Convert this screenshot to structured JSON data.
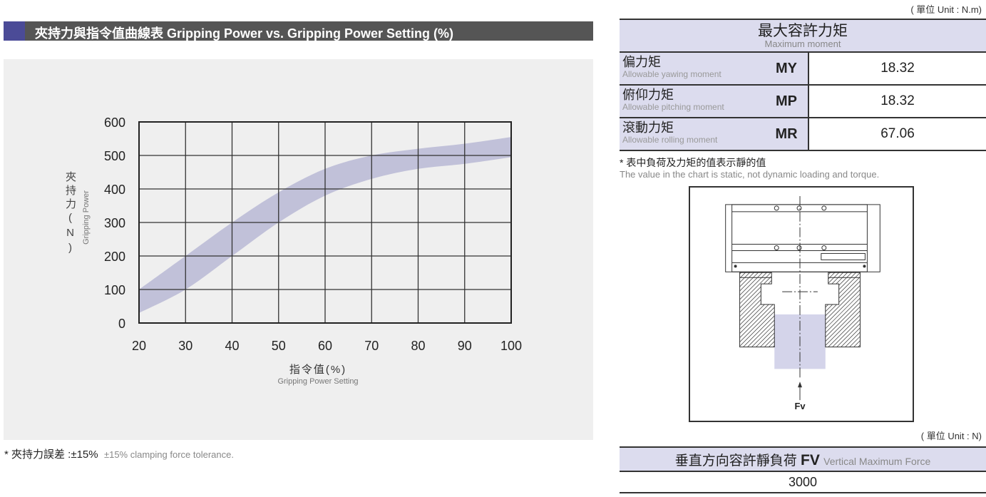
{
  "left": {
    "section_title": "夾持力與指令值曲線表 Gripping Power vs. Gripping Power Setting (%)",
    "tolerance_zh": "* 夾持力誤差 :±15%",
    "tolerance_en": "±15% clamping force tolerance."
  },
  "chart_data": {
    "type": "area",
    "title": "",
    "xlabel": "指令值(%)",
    "xlabel_en": "Gripping Power Setting",
    "ylabel": "夾持力(N)",
    "ylabel_chars": [
      "夾",
      "持",
      "力",
      "(N)"
    ],
    "ylabel_en": "Gripping Power",
    "xlim": [
      20,
      100
    ],
    "ylim": [
      0,
      600
    ],
    "x_ticks": [
      20,
      30,
      40,
      50,
      60,
      70,
      80,
      90,
      100
    ],
    "y_ticks": [
      0,
      100,
      200,
      300,
      400,
      500,
      600
    ],
    "grid": true,
    "band_color": "#c1c1d9",
    "x": [
      20,
      30,
      40,
      50,
      60,
      70,
      80,
      90,
      100
    ],
    "upper": [
      100,
      200,
      300,
      390,
      460,
      500,
      520,
      535,
      555
    ],
    "lower": [
      30,
      100,
      200,
      300,
      380,
      430,
      460,
      475,
      495
    ]
  },
  "moment": {
    "unit": "( 單位 Unit : N.m)",
    "title_zh": "最大容許力矩",
    "title_en": "Maximum moment",
    "rows": [
      {
        "zh": "偏力矩",
        "en": "Allowable yawing moment",
        "sym": "MY",
        "value": "18.32"
      },
      {
        "zh": "俯仰力矩",
        "en": "Allowable pitching moment",
        "sym": "MP",
        "value": "18.32"
      },
      {
        "zh": "滾動力矩",
        "en": "Allowable rolling moment",
        "sym": "MR",
        "value": "67.06"
      }
    ],
    "note_zh": "* 表中負荷及力矩的值表示靜的值",
    "note_en": "The value in the chart is static, not dynamic loading and torque."
  },
  "diagram": {
    "force_label": "Fv"
  },
  "force": {
    "unit": "( 單位 Unit : N)",
    "title_zh": "垂直方向容許靜負荷",
    "title_sym": "FV",
    "title_en": "Vertical Maximum Force",
    "value": "3000"
  }
}
